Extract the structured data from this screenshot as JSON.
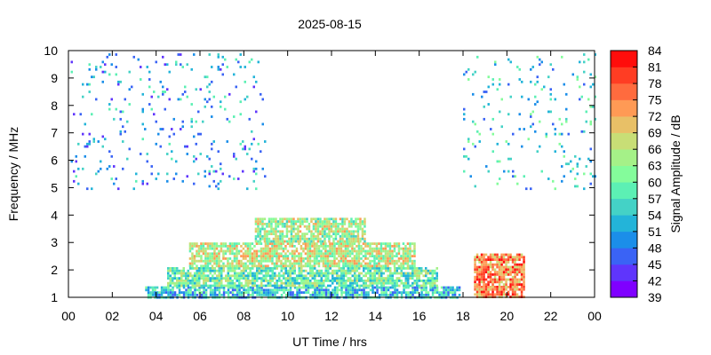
{
  "chart_data": {
    "type": "heatmap",
    "title": "2025-08-15",
    "xlabel": "UT Time / hrs",
    "ylabel": "Frequency / MHz",
    "colorbar_label": "Signal Amplitude / dB",
    "xlim": [
      0,
      24
    ],
    "ylim": [
      1,
      10
    ],
    "x_ticks": [
      "00",
      "02",
      "04",
      "06",
      "08",
      "10",
      "12",
      "14",
      "16",
      "18",
      "20",
      "22",
      "00"
    ],
    "y_ticks": [
      "1",
      "2",
      "3",
      "4",
      "5",
      "6",
      "7",
      "8",
      "9",
      "10"
    ],
    "colorbar_range": [
      39,
      84
    ],
    "colorbar_ticks": [
      "39",
      "42",
      "45",
      "48",
      "51",
      "54",
      "57",
      "60",
      "63",
      "66",
      "69",
      "72",
      "75",
      "78",
      "81",
      "84"
    ],
    "colorbar_colors": [
      "#7f00ff",
      "#5f35fc",
      "#3a63f5",
      "#1b8ee9",
      "#23b4d9",
      "#44d2c6",
      "#5cf0b4",
      "#84fc9b",
      "#a5f188",
      "#c8de76",
      "#e8c067",
      "#ff9a55",
      "#ff6b3e",
      "#ff3d23",
      "#ff0d0b"
    ],
    "regions": [
      {
        "x": [
          3.5,
          17.8
        ],
        "y": [
          1.0,
          1.4
        ],
        "level": 54
      },
      {
        "x": [
          4.5,
          16.8
        ],
        "y": [
          1.4,
          2.1
        ],
        "level": 60
      },
      {
        "x": [
          5.5,
          15.8
        ],
        "y": [
          2.1,
          3.0
        ],
        "level": 66
      },
      {
        "x": [
          8.5,
          13.5
        ],
        "y": [
          3.0,
          3.9
        ],
        "level": 64
      },
      {
        "x": [
          18.5,
          20.8
        ],
        "y": [
          1.0,
          2.6
        ],
        "level": 75
      },
      {
        "x": [
          0.0,
          9.0
        ],
        "y": [
          5.0,
          9.9
        ],
        "level": 51
      },
      {
        "x": [
          18.0,
          24.0
        ],
        "y": [
          5.0,
          9.9
        ],
        "level": 54
      }
    ]
  }
}
